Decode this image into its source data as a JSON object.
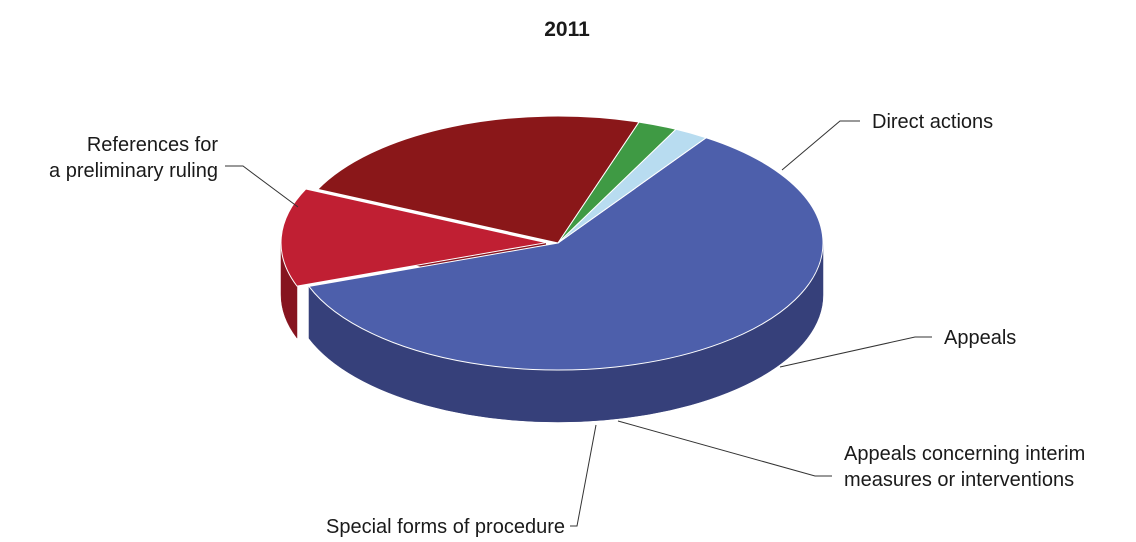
{
  "chart_data": {
    "type": "pie",
    "title": "2011",
    "categories": [
      "References for a preliminary ruling",
      "Direct actions",
      "Appeals",
      "Appeals concerning interim measures or interventions",
      "Special forms of procedure"
    ],
    "label_lines": [
      [
        "References for",
        "a preliminary ruling"
      ],
      [
        "Direct actions"
      ],
      [
        "Appeals"
      ],
      [
        "Appeals concerning interim",
        "measures or interventions"
      ],
      [
        "Special forms of procedure"
      ]
    ],
    "values": [
      60,
      12.5,
      23,
      2.4,
      2.1
    ],
    "colors": [
      "#4d5fab",
      "#c01f33",
      "#8a1719",
      "#3f9a44",
      "#b8dcf0"
    ],
    "side_colors": [
      "#36407a",
      "#86141f",
      "#4e0000",
      "#1e6320",
      "#8aa3b3"
    ],
    "exploded": "Direct actions",
    "legend": "none (callout labels)",
    "view": "3d-tilted"
  }
}
